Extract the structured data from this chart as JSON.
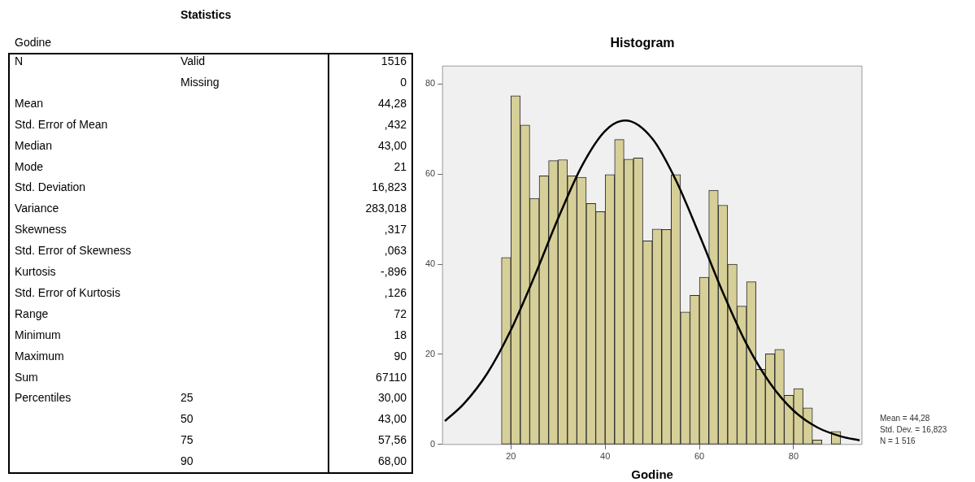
{
  "chart_data": [
    {
      "type": "other",
      "title": "Statistics",
      "subtitle": "Godine",
      "cell_labels": [
        [
          "N",
          "Valid",
          "1516"
        ],
        [
          null,
          "Missing",
          "0"
        ],
        [
          "Mean",
          null,
          "44,28"
        ],
        [
          "Std. Error of Mean",
          null,
          ",432"
        ],
        [
          "Median",
          null,
          "43,00"
        ],
        [
          "Mode",
          null,
          "21"
        ],
        [
          "Std. Deviation",
          null,
          "16,823"
        ],
        [
          "Variance",
          null,
          "283,018"
        ],
        [
          "Skewness",
          null,
          ",317"
        ],
        [
          "Std. Error of Skewness",
          null,
          ",063"
        ],
        [
          "Kurtosis",
          null,
          "-,896"
        ],
        [
          "Std. Error of Kurtosis",
          null,
          ",126"
        ],
        [
          "Range",
          null,
          "72"
        ],
        [
          "Minimum",
          null,
          "18"
        ],
        [
          "Maximum",
          null,
          "90"
        ],
        [
          "Sum",
          null,
          "67110"
        ],
        [
          "Percentiles",
          "25",
          "30,00"
        ],
        [
          null,
          "50",
          "43,00"
        ],
        [
          null,
          "75",
          "57,56"
        ],
        [
          null,
          "90",
          "68,00"
        ]
      ]
    },
    {
      "type": "histogram",
      "title": "Histogram",
      "xlabel": "Godine",
      "bins": [
        18,
        20,
        22,
        24,
        26,
        28,
        30,
        32,
        34,
        36,
        38,
        40,
        42,
        44,
        46,
        48,
        50,
        52,
        54,
        56,
        58,
        60,
        62,
        64,
        66,
        68,
        70,
        72,
        74,
        76,
        78,
        80,
        82,
        84,
        86,
        88,
        90
      ],
      "series": [
        {
          "type": "histogram",
          "color": "#d6cf98",
          "values": [
            41.5,
            77.4,
            70.9,
            54.6,
            59.6,
            63.0,
            63.2,
            59.6,
            59.3,
            53.5,
            51.7,
            59.9,
            67.7,
            63.3,
            63.6,
            45.2,
            47.8,
            47.7,
            59.9,
            29.4,
            33.1,
            37.1,
            56.4,
            53.1,
            40.0,
            30.7,
            36.1,
            16.7,
            20.1,
            21.1,
            10.9,
            12.4,
            8.1,
            1.0,
            0,
            2.9
          ]
        },
        {
          "type": "line",
          "color": "#000000",
          "marker": "none",
          "line_style": "solid",
          "x": [
            6,
            10,
            15,
            20,
            25,
            30,
            35,
            40,
            44.3,
            50,
            55,
            60,
            65,
            70,
            75,
            80,
            85,
            90,
            94
          ],
          "values": [
            5.2,
            9.0,
            15.8,
            25.4,
            37.3,
            50.1,
            61.7,
            69.6,
            71.9,
            67.9,
            58.7,
            46.5,
            33.7,
            22.3,
            13.6,
            7.5,
            3.8,
            1.8,
            0.9
          ]
        }
      ],
      "xlim": [
        5.5,
        94.5
      ],
      "xticks": [
        20,
        40,
        60,
        80
      ],
      "ylim": [
        0,
        84
      ],
      "yticks": [
        0,
        20,
        40,
        60,
        80
      ],
      "grid": false,
      "legend": false,
      "annotations": [
        "Mean = 44,28",
        "Std. Dev. = 16,823",
        "N = 1 516"
      ]
    }
  ]
}
